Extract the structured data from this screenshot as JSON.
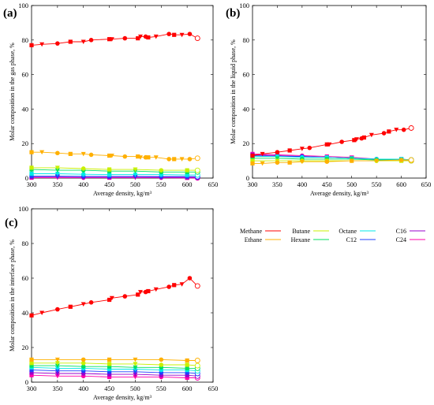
{
  "chart_data": [
    {
      "type": "line",
      "panel_label": "(a)",
      "xlabel": "Average density, kg/m³",
      "ylabel": "Molar composition in the gas phase, %",
      "xlim": [
        300,
        650
      ],
      "ylim": [
        0,
        100
      ],
      "xticks": [
        300,
        350,
        400,
        450,
        500,
        550,
        600,
        650
      ],
      "yticks": [
        0,
        20,
        40,
        60,
        80,
        100
      ],
      "series": [
        {
          "name": "Methane",
          "color": "#ff0000",
          "x": [
            300,
            320,
            350,
            375,
            400,
            415,
            450,
            455,
            480,
            505,
            510,
            520,
            525,
            540,
            565,
            575,
            590,
            605,
            620
          ],
          "y": [
            77,
            77.5,
            78,
            79,
            79,
            80,
            80.5,
            80.5,
            81,
            81,
            82,
            82,
            81.5,
            82,
            83.5,
            83,
            83,
            83.5,
            81
          ]
        },
        {
          "name": "Ethane",
          "color": "#ffb000",
          "x": [
            300,
            320,
            350,
            375,
            400,
            415,
            450,
            455,
            480,
            505,
            510,
            520,
            525,
            540,
            565,
            575,
            590,
            605,
            620
          ],
          "y": [
            15,
            15,
            14.5,
            14,
            14,
            13.5,
            13,
            13,
            12.5,
            12.5,
            12,
            12,
            12,
            12,
            11,
            11,
            11,
            11,
            11.5
          ]
        },
        {
          "name": "Butane",
          "color": "#c8f000",
          "x": [
            300,
            350,
            400,
            450,
            500,
            550,
            600,
            620
          ],
          "y": [
            6,
            6,
            5.5,
            5,
            5,
            4.5,
            4.5,
            4.5
          ]
        },
        {
          "name": "Hexane",
          "color": "#00e060",
          "x": [
            300,
            350,
            400,
            450,
            500,
            550,
            600,
            620
          ],
          "y": [
            5,
            4.5,
            4.5,
            4,
            4,
            3.5,
            3.5,
            3.5
          ]
        },
        {
          "name": "Octane",
          "color": "#00e8e8",
          "x": [
            300,
            350,
            400,
            450,
            500,
            550,
            600,
            620
          ],
          "y": [
            2.5,
            2.5,
            2.2,
            2,
            2,
            2,
            1.8,
            1.8
          ]
        },
        {
          "name": "C12",
          "color": "#2040ff",
          "x": [
            300,
            350,
            400,
            450,
            500,
            550,
            600,
            620
          ],
          "y": [
            1.2,
            1.1,
            1,
            1,
            1,
            0.9,
            0.9,
            0.8
          ]
        },
        {
          "name": "C16",
          "color": "#9900cc",
          "x": [
            300,
            350,
            400,
            450,
            500,
            550,
            600,
            620
          ],
          "y": [
            0.6,
            0.6,
            0.5,
            0.5,
            0.5,
            0.4,
            0.4,
            0.4
          ]
        },
        {
          "name": "C24",
          "color": "#ff00aa",
          "x": [
            300,
            350,
            400,
            450,
            500,
            550,
            600,
            620
          ],
          "y": [
            0.2,
            0.2,
            0.2,
            0.2,
            0.2,
            0.2,
            0.1,
            0.1
          ]
        }
      ]
    },
    {
      "type": "line",
      "panel_label": "(b)",
      "xlabel": "Average density, kg/m³",
      "ylabel": "Molar composition in the liquid phase, %",
      "xlim": [
        300,
        650
      ],
      "ylim": [
        0,
        100
      ],
      "xticks": [
        300,
        350,
        400,
        450,
        500,
        550,
        600,
        650
      ],
      "yticks": [
        0,
        20,
        40,
        60,
        80,
        100
      ],
      "series": [
        {
          "name": "Methane",
          "color": "#ff0000",
          "x": [
            300,
            320,
            350,
            375,
            400,
            415,
            450,
            455,
            480,
            505,
            510,
            520,
            525,
            540,
            565,
            575,
            590,
            605,
            620
          ],
          "y": [
            13,
            14,
            15,
            16,
            17,
            17.5,
            19.5,
            19.5,
            21,
            22,
            22.5,
            23,
            23.5,
            25,
            26,
            27,
            28,
            28,
            29
          ]
        },
        {
          "name": "Ethane",
          "color": "#ffb000",
          "x": [
            300,
            320,
            350,
            375,
            400,
            450,
            500,
            550,
            600,
            620
          ],
          "y": [
            8.5,
            8.5,
            9,
            9,
            9.5,
            9.5,
            10,
            10,
            10.5,
            10.5
          ]
        },
        {
          "name": "Butane",
          "color": "#c8f000",
          "x": [
            300,
            350,
            400,
            450,
            500,
            550,
            600,
            620
          ],
          "y": [
            10,
            10,
            10,
            10,
            10,
            10,
            10,
            10
          ]
        },
        {
          "name": "Hexane",
          "color": "#00e060",
          "x": [
            300,
            350,
            400,
            450,
            500,
            550,
            600,
            620
          ],
          "y": [
            11.5,
            11.5,
            11,
            11,
            11,
            10.5,
            10.5,
            10.5
          ]
        },
        {
          "name": "Octane",
          "color": "#00e8e8",
          "x": [
            300,
            350,
            400,
            450,
            500,
            550,
            600,
            620
          ],
          "y": [
            12.5,
            12.5,
            12,
            12,
            11.5,
            11,
            11,
            10.5
          ]
        },
        {
          "name": "C12",
          "color": "#2040ff",
          "x": [
            300,
            350,
            400,
            450,
            500,
            550,
            600,
            620
          ],
          "y": [
            13,
            12.5,
            12.5,
            12,
            11.5,
            11,
            11,
            10.5
          ]
        },
        {
          "name": "C16",
          "color": "#9900cc",
          "x": [
            300,
            350,
            400,
            450,
            500,
            550,
            600,
            620
          ],
          "y": [
            13.5,
            13,
            12.5,
            12,
            11.5,
            11,
            10.5,
            10
          ]
        },
        {
          "name": "C24",
          "color": "#ff00aa",
          "x": [
            300,
            350,
            400,
            450,
            500,
            550,
            600,
            620
          ],
          "y": [
            14,
            13.5,
            13,
            12.5,
            12,
            11,
            10.5,
            10
          ]
        }
      ]
    },
    {
      "type": "line",
      "panel_label": "(c)",
      "xlabel": "Average density, kg/m³",
      "ylabel": "Molar composition in the interface phase, %",
      "xlim": [
        300,
        650
      ],
      "ylim": [
        0,
        100
      ],
      "xticks": [
        300,
        350,
        400,
        450,
        500,
        550,
        600,
        650
      ],
      "yticks": [
        0,
        20,
        40,
        60,
        80,
        100
      ],
      "series": [
        {
          "name": "Methane",
          "color": "#ff0000",
          "x": [
            300,
            320,
            350,
            375,
            400,
            415,
            450,
            455,
            480,
            505,
            510,
            520,
            525,
            540,
            565,
            575,
            590,
            605,
            620
          ],
          "y": [
            38.5,
            40,
            42,
            43.5,
            45,
            46,
            47.5,
            48.5,
            49.5,
            50.5,
            52,
            52,
            52.5,
            53.5,
            55,
            56,
            56.5,
            60,
            55.5
          ]
        },
        {
          "name": "Ethane",
          "color": "#ffb000",
          "x": [
            300,
            350,
            400,
            450,
            500,
            550,
            600,
            620
          ],
          "y": [
            13,
            13,
            13,
            13,
            13,
            13,
            12.5,
            12.5
          ]
        },
        {
          "name": "Butane",
          "color": "#c8f000",
          "x": [
            300,
            350,
            400,
            450,
            500,
            550,
            600,
            620
          ],
          "y": [
            11,
            11,
            11,
            10.5,
            10.5,
            10,
            10,
            9.5
          ]
        },
        {
          "name": "Hexane",
          "color": "#00e060",
          "x": [
            300,
            350,
            400,
            450,
            500,
            550,
            600,
            620
          ],
          "y": [
            9.5,
            9.5,
            9,
            9,
            8.5,
            8.5,
            8,
            8
          ]
        },
        {
          "name": "Octane",
          "color": "#00e8e8",
          "x": [
            300,
            350,
            400,
            450,
            500,
            550,
            600,
            620
          ],
          "y": [
            8.5,
            8,
            8,
            7.5,
            7.5,
            7,
            7,
            6.5
          ]
        },
        {
          "name": "C12",
          "color": "#2040ff",
          "x": [
            300,
            350,
            400,
            450,
            500,
            550,
            600,
            620
          ],
          "y": [
            7,
            6.5,
            6.5,
            6,
            6,
            5.5,
            5.5,
            5
          ]
        },
        {
          "name": "C16",
          "color": "#9900cc",
          "x": [
            300,
            350,
            400,
            450,
            500,
            550,
            600,
            620
          ],
          "y": [
            5.5,
            5,
            5,
            4.5,
            4.5,
            4,
            4,
            3.5
          ]
        },
        {
          "name": "C24",
          "color": "#ff00aa",
          "x": [
            300,
            350,
            400,
            450,
            500,
            550,
            600,
            620
          ],
          "y": [
            4,
            3.5,
            3.5,
            3,
            3,
            3,
            2.5,
            2.5
          ]
        }
      ]
    }
  ],
  "legend": {
    "placement": "right of panel (c)",
    "entries": [
      "Methane",
      "Ethane",
      "Butane",
      "Hexane",
      "Octane",
      "C12",
      "C16",
      "C24"
    ]
  }
}
